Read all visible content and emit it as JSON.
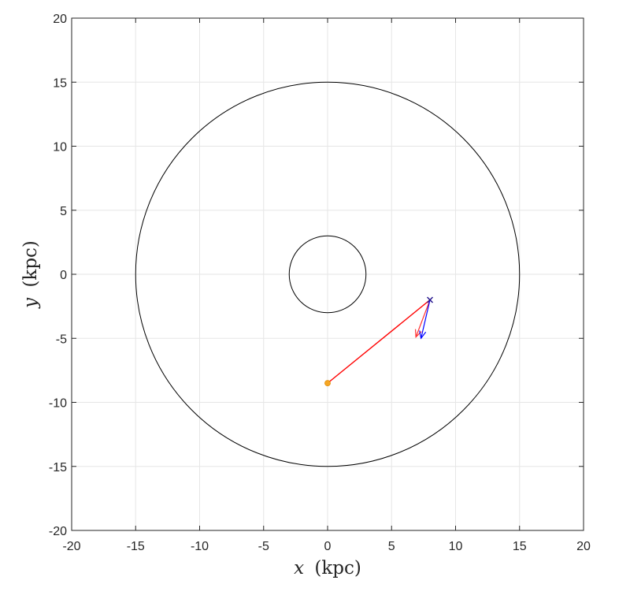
{
  "chart_data": {
    "type": "scatter",
    "title": "",
    "xlabel": {
      "variable": "x",
      "unit": "(kpc)"
    },
    "ylabel": {
      "variable": "y",
      "unit": "(kpc)"
    },
    "xlim": [
      -20,
      20
    ],
    "ylim": [
      -20,
      20
    ],
    "xticks": [
      -20,
      -15,
      -10,
      -5,
      0,
      5,
      10,
      15,
      20
    ],
    "yticks": [
      -20,
      -15,
      -10,
      -5,
      0,
      5,
      10,
      15,
      20
    ],
    "grid": true,
    "box": true,
    "circles": [
      {
        "center": [
          0,
          0
        ],
        "radius": 15,
        "color": "#000000"
      },
      {
        "center": [
          0,
          0
        ],
        "radius": 3,
        "color": "#000000"
      }
    ],
    "lines": [
      {
        "from": [
          0,
          -8.5
        ],
        "to": [
          8,
          -2
        ],
        "color": "#ff0000"
      }
    ],
    "arrows": [
      {
        "from": [
          8,
          -2
        ],
        "to": [
          6.9,
          -4.9
        ],
        "color": "#ff3333"
      },
      {
        "from": [
          8,
          -2
        ],
        "to": [
          7.3,
          -5.0
        ],
        "color": "#0000ff"
      }
    ],
    "points": [
      {
        "x": 0,
        "y": -8.5,
        "marker": "circle",
        "color": "#f5a623"
      },
      {
        "x": 8,
        "y": -2,
        "marker": "x",
        "color": "#2a1a8f"
      }
    ]
  }
}
